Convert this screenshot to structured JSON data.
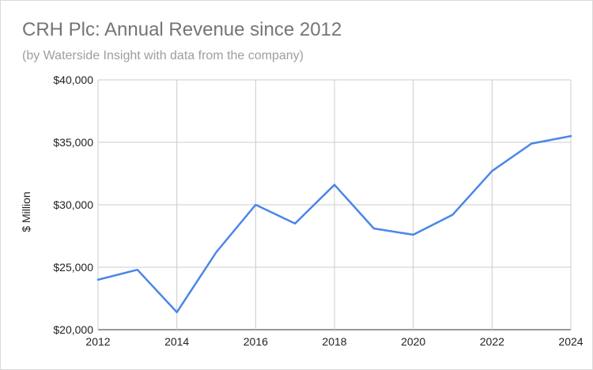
{
  "chart_data": {
    "type": "line",
    "title": "CRH Plc: Annual Revenue since 2012",
    "subtitle": "(by Waterside Insight with data from the company)",
    "xlabel": "",
    "ylabel": "$ Million",
    "x": [
      2012,
      2013,
      2014,
      2015,
      2016,
      2017,
      2018,
      2019,
      2020,
      2021,
      2022,
      2023,
      2024
    ],
    "series": [
      {
        "name": "",
        "color": "#4a86e8",
        "values": [
          24000,
          24800,
          21400,
          26200,
          30000,
          28500,
          31600,
          28100,
          27600,
          29200,
          32700,
          34900,
          35500
        ]
      }
    ],
    "xlim": [
      2012,
      2024
    ],
    "ylim": [
      20000,
      40000
    ],
    "x_ticks": [
      "2012",
      "2014",
      "2016",
      "2018",
      "2020",
      "2022",
      "2024"
    ],
    "y_ticks": [
      "$20,000",
      "$25,000",
      "$30,000",
      "$35,000",
      "$40,000"
    ],
    "grid": true,
    "legend": "none"
  }
}
